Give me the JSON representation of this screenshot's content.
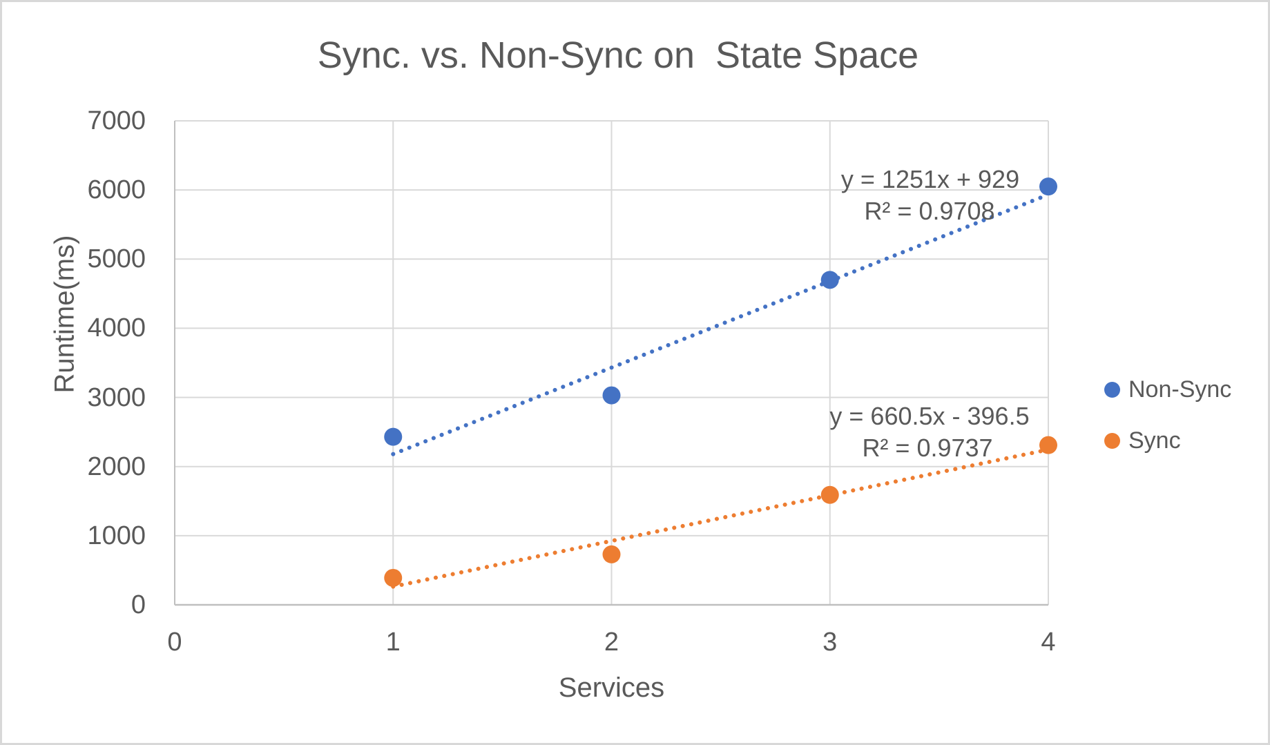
{
  "title": "Sync. vs. Non-Sync on  State Space",
  "chart_data": {
    "type": "scatter",
    "title": "Sync. vs. Non-Sync on  State Space",
    "xlabel": "Services",
    "ylabel": "Runtime(ms)",
    "xlim": [
      0,
      4
    ],
    "ylim": [
      0,
      7000
    ],
    "x_ticks": [
      0,
      1,
      2,
      3,
      4
    ],
    "y_ticks": [
      0,
      1000,
      2000,
      3000,
      4000,
      5000,
      6000,
      7000
    ],
    "grid": true,
    "legend_position": "right",
    "series": [
      {
        "name": "Non-Sync",
        "color": "#4472C4",
        "points": [
          {
            "x": 1,
            "y": 2430
          },
          {
            "x": 2,
            "y": 3030
          },
          {
            "x": 3,
            "y": 4700
          },
          {
            "x": 4,
            "y": 6050
          }
        ],
        "trendline": {
          "style": "dotted",
          "slope": 1251,
          "intercept": 929,
          "x_start": 1,
          "x_end": 4,
          "equation": "y = 1251x + 929",
          "r_squared": "R² = 0.9708"
        }
      },
      {
        "name": "Sync",
        "color": "#ED7D31",
        "points": [
          {
            "x": 1,
            "y": 390
          },
          {
            "x": 2,
            "y": 730
          },
          {
            "x": 3,
            "y": 1590
          },
          {
            "x": 4,
            "y": 2310
          }
        ],
        "trendline": {
          "style": "dotted",
          "slope": 660.5,
          "intercept": -396.5,
          "x_start": 1,
          "x_end": 4,
          "equation": "y = 660.5x - 396.5",
          "r_squared": "R² = 0.9737"
        }
      }
    ],
    "colors": {
      "text": "#595959",
      "gridline": "#D9D9D9",
      "axis_line": "#BFBFBF",
      "background": "#FFFFFF",
      "frame_border": "#D8D8D8"
    }
  }
}
